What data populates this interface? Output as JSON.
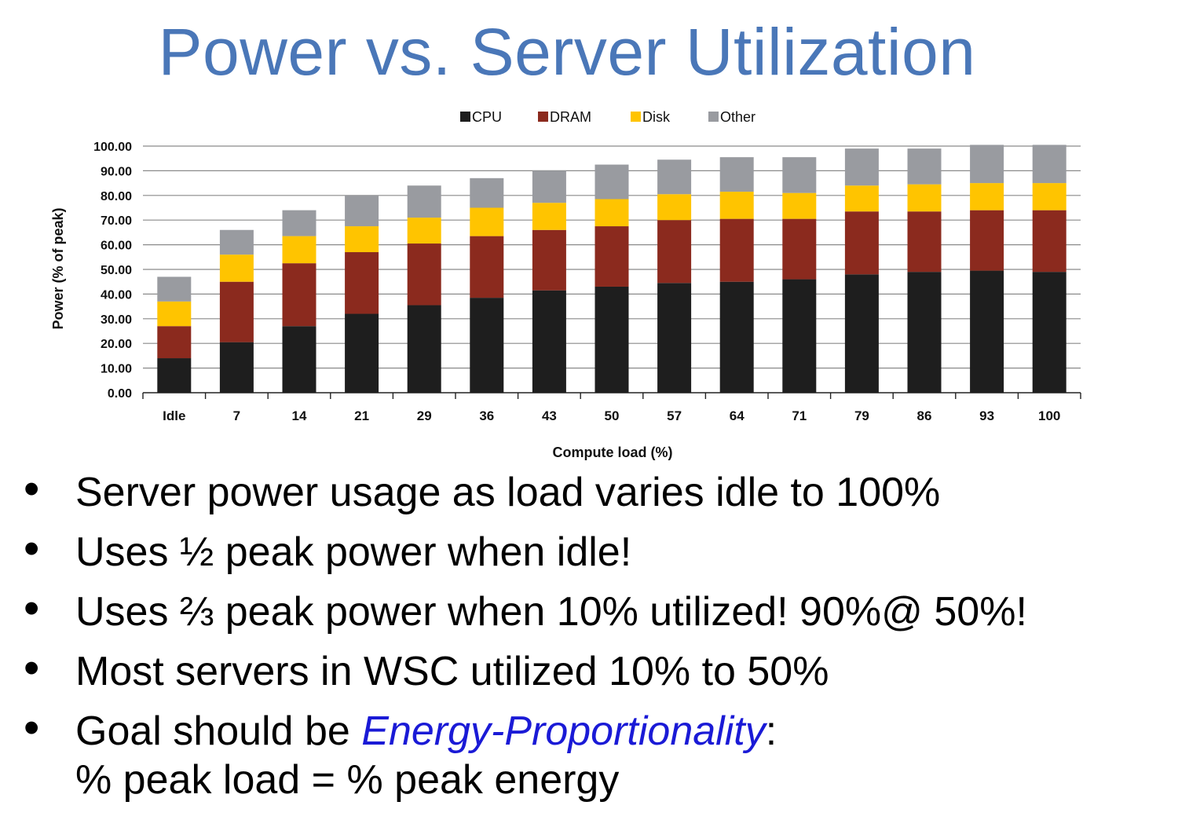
{
  "title": "Power vs. Server Utilization",
  "chart_data": {
    "type": "bar",
    "stacked": true,
    "title": "",
    "xlabel": "Compute load (%)",
    "ylabel": "Power (% of peak)",
    "ylim": [
      0,
      100
    ],
    "yticks": [
      "0.00",
      "10.00",
      "20.00",
      "30.00",
      "40.00",
      "50.00",
      "60.00",
      "70.00",
      "80.00",
      "90.00",
      "100.00"
    ],
    "grid": true,
    "legend_position": "top",
    "categories": [
      "Idle",
      "7",
      "14",
      "21",
      "29",
      "36",
      "43",
      "50",
      "57",
      "64",
      "71",
      "79",
      "86",
      "93",
      "100"
    ],
    "series": [
      {
        "name": "CPU",
        "color": "#1e1e1e",
        "values": [
          14,
          20.5,
          27,
          32,
          35.5,
          38.5,
          41.5,
          43,
          44.5,
          45,
          46,
          48,
          49,
          49.5,
          49
        ]
      },
      {
        "name": "DRAM",
        "color": "#8b2a1e",
        "values": [
          13,
          24.5,
          25.5,
          25,
          25,
          25,
          24.5,
          24.5,
          25.5,
          25.5,
          24.5,
          25.5,
          24.5,
          24.5,
          25
        ]
      },
      {
        "name": "Disk",
        "color": "#ffc400",
        "values": [
          10,
          11,
          11,
          10.5,
          10.5,
          11.5,
          11,
          11,
          10.5,
          11,
          10.5,
          10.5,
          11,
          11,
          11
        ]
      },
      {
        "name": "Other",
        "color": "#999ba0",
        "values": [
          10,
          10,
          10.5,
          12.5,
          13,
          12,
          13,
          14,
          14,
          14,
          14.5,
          15,
          14.5,
          15.5,
          15.5
        ]
      }
    ]
  },
  "bullets": [
    {
      "text": "Server power usage as load varies idle to 100%"
    },
    {
      "text": "Uses ½ peak power when idle!"
    },
    {
      "text": "Uses ⅔ peak power when 10% utilized! 90%@ 50%!"
    },
    {
      "text": "Most servers in WSC utilized 10% to 50%"
    },
    {
      "prefix": "Goal should be ",
      "emphasis": "Energy-Proportionality",
      "suffix": ":",
      "line2": "% peak load = % peak energy"
    }
  ]
}
